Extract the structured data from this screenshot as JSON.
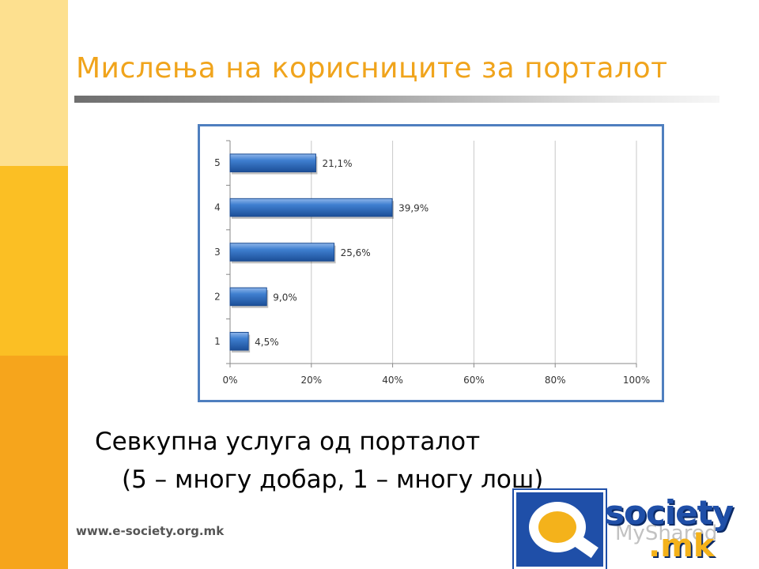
{
  "slide": {
    "title": "Мислења на корисниците за порталот",
    "caption_line1": "Севкупна услуга од порталот",
    "caption_line2": "(5 – многу добар, 1 – многу лош)",
    "footer_url": "www.e-society.org.mk"
  },
  "logo": {
    "text": "society",
    "suffix": ".mk",
    "watermark": "MyShared"
  },
  "colors": {
    "title": "#f0a41c",
    "bar": "#2e6fc4",
    "frame": "#4f7fbf"
  },
  "chart_data": {
    "type": "bar",
    "orientation": "horizontal",
    "categories": [
      "5",
      "4",
      "3",
      "2",
      "1"
    ],
    "values": [
      21.1,
      39.9,
      25.6,
      9.0,
      4.5
    ],
    "data_labels": [
      "21,1%",
      "39,9%",
      "25,6%",
      "9,0%",
      "4,5%"
    ],
    "x_ticks": [
      "0%",
      "20%",
      "40%",
      "60%",
      "80%",
      "100%"
    ],
    "xlim": [
      0,
      100
    ],
    "grid": true,
    "title": "",
    "xlabel": "",
    "ylabel": ""
  }
}
